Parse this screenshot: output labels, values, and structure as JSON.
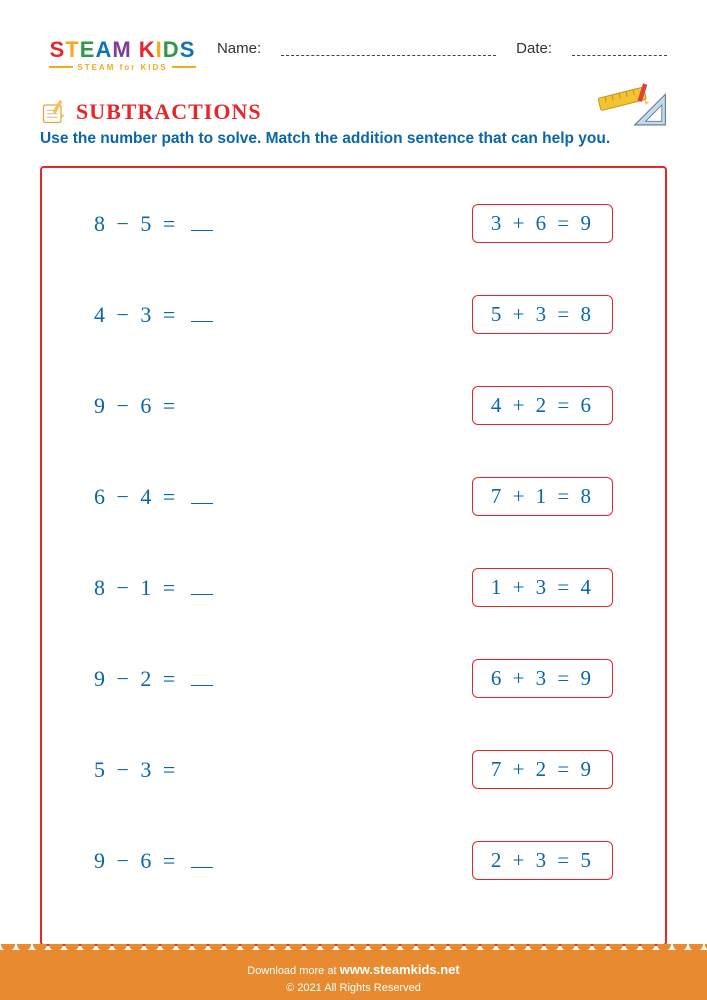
{
  "header": {
    "logo_letters": [
      "S",
      "T",
      "E",
      "A",
      "M",
      " ",
      "K",
      "I",
      "D",
      "S"
    ],
    "logo_sub": "STEAM for KIDS",
    "name_label": "Name:",
    "date_label": "Date:"
  },
  "title": {
    "text": "SUBTRACTIONS",
    "color": "#e8252a"
  },
  "instruction": {
    "text": "Use the number path to solve. Match the addition sentence that can help you.",
    "color": "#0a66a8"
  },
  "box": {
    "border_color": "#e8252a"
  },
  "colors": {
    "problem_text": "#0a66a8",
    "addition_border": "#e8252a",
    "addition_text": "#0a66a8",
    "blank_underline": "#0a66a8"
  },
  "problems": [
    {
      "sub": "8 − 5 =",
      "blank": true,
      "add": "3 + 6 = 9"
    },
    {
      "sub": "4 − 3 =",
      "blank": true,
      "add": "5 + 3 = 8"
    },
    {
      "sub": "9 − 6 =",
      "blank": false,
      "add": "4 + 2 = 6"
    },
    {
      "sub": "6 − 4 =",
      "blank": true,
      "add": "7 + 1 = 8"
    },
    {
      "sub": "8 − 1 =",
      "blank": true,
      "add": "1 + 3 = 4"
    },
    {
      "sub": "9 − 2 =",
      "blank": true,
      "add": "6 + 3 = 9"
    },
    {
      "sub": "5 − 3 =",
      "blank": false,
      "add": "7 + 2 = 9"
    },
    {
      "sub": "9 − 6 =",
      "blank": true,
      "add": "2 + 3 = 5"
    }
  ],
  "footer": {
    "line1_prefix": "Download more at ",
    "link": "www.steamkids.net",
    "line2": "© 2021 All Rights Reserved",
    "background_color": "#e88a2f"
  }
}
